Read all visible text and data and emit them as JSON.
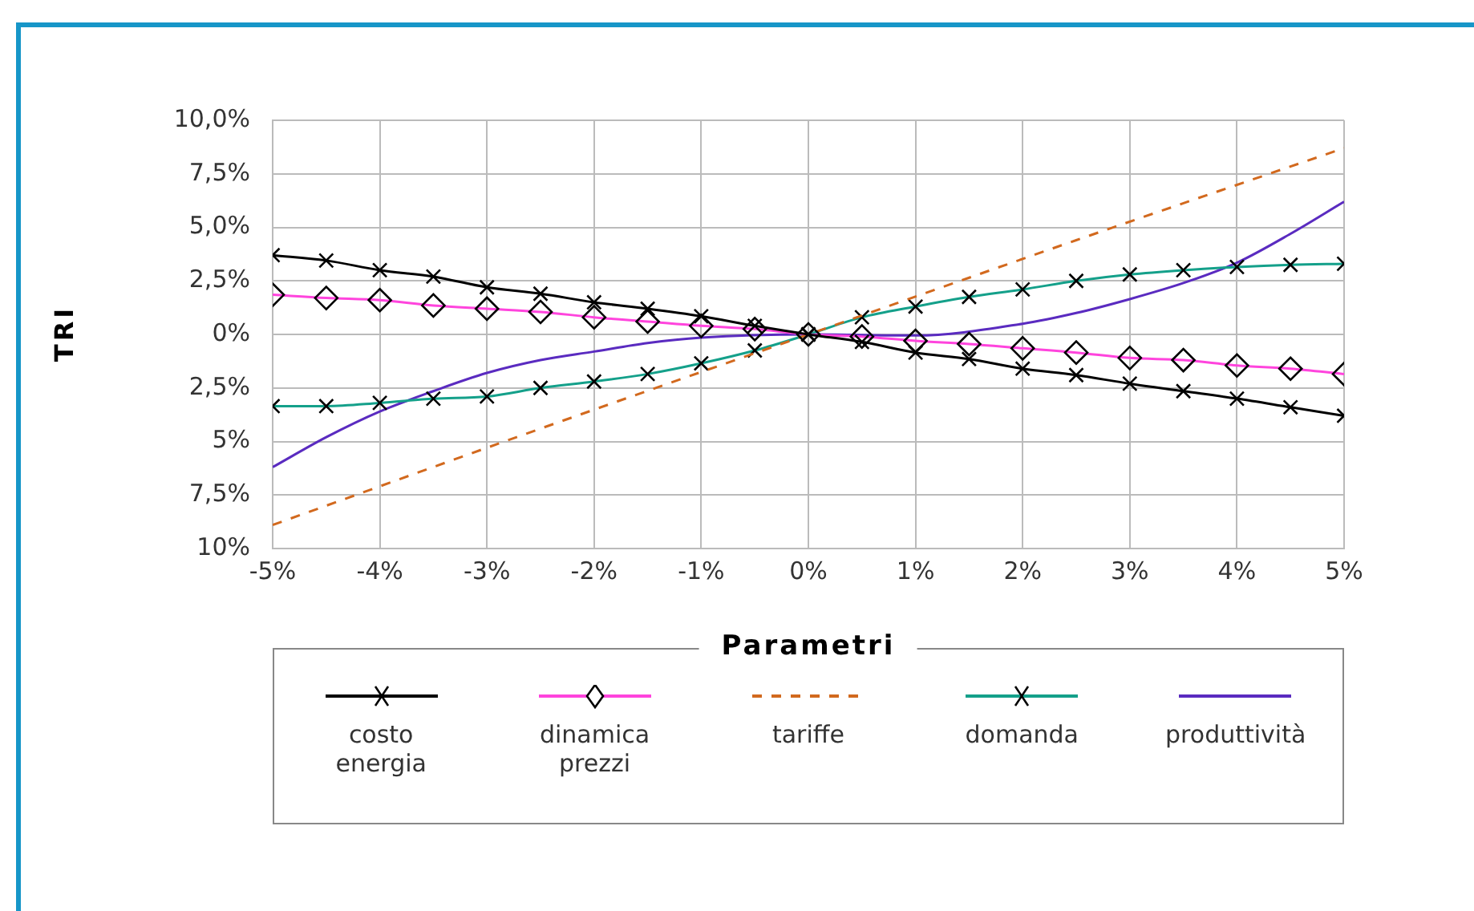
{
  "chart_data": {
    "type": "line",
    "ylabel": "TRI",
    "legend_title": "Parametri",
    "legend": "bottom",
    "grid": true,
    "x": [
      -5,
      -4.5,
      -4,
      -3.5,
      -3,
      -2.5,
      -2,
      -1.5,
      -1,
      -0.5,
      0,
      0.5,
      1,
      1.5,
      2,
      2.5,
      3,
      3.5,
      4,
      4.5,
      5
    ],
    "xlim": [
      -5,
      5
    ],
    "xticks": [
      {
        "value": -5,
        "label": "-5%"
      },
      {
        "value": -4,
        "label": "-4%"
      },
      {
        "value": -3,
        "label": "-3%"
      },
      {
        "value": -2,
        "label": "-2%"
      },
      {
        "value": -1,
        "label": "-1%"
      },
      {
        "value": 0,
        "label": "0%"
      },
      {
        "value": 1,
        "label": "1%"
      },
      {
        "value": 2,
        "label": "2%"
      },
      {
        "value": 3,
        "label": "3%"
      },
      {
        "value": 4,
        "label": "4%"
      },
      {
        "value": 5,
        "label": "5%"
      }
    ],
    "ylim": [
      -10,
      10
    ],
    "yticks": [
      {
        "value": -10,
        "label": "10%"
      },
      {
        "value": -7.5,
        "label": "7,5%"
      },
      {
        "value": -5,
        "label": "5%"
      },
      {
        "value": -2.5,
        "label": "2,5%"
      },
      {
        "value": 0,
        "label": "0%"
      },
      {
        "value": 2.5,
        "label": "2,5%"
      },
      {
        "value": 5,
        "label": "5,0%"
      },
      {
        "value": 7.5,
        "label": "7,5%"
      },
      {
        "value": 10,
        "label": "10,0%"
      }
    ],
    "series": [
      {
        "name": "costo energia",
        "color": "#000000",
        "marker": "cross",
        "line_style": "solid",
        "values": [
          3.7,
          3.45,
          3.0,
          2.7,
          2.2,
          1.9,
          1.5,
          1.2,
          0.85,
          0.4,
          0,
          -0.35,
          -0.85,
          -1.15,
          -1.6,
          -1.9,
          -2.3,
          -2.65,
          -3.0,
          -3.4,
          -3.8
        ]
      },
      {
        "name": "dinamica prezzi",
        "color": "#ff44dd",
        "marker": "diamond",
        "line_style": "solid",
        "values": [
          1.85,
          1.7,
          1.6,
          1.35,
          1.2,
          1.05,
          0.8,
          0.6,
          0.4,
          0.25,
          0,
          -0.1,
          -0.3,
          -0.45,
          -0.65,
          -0.85,
          -1.1,
          -1.2,
          -1.45,
          -1.6,
          -1.85
        ]
      },
      {
        "name": "tariffe",
        "color": "#d2691e",
        "marker": "none",
        "line_style": "dashed",
        "x": [
          -5,
          -2.5,
          0,
          2.5,
          5
        ],
        "values": [
          -8.9,
          -4.4,
          0,
          4.4,
          8.7
        ]
      },
      {
        "name": "domanda",
        "color": "#14a08a",
        "marker": "cross",
        "line_style": "solid",
        "values": [
          -3.35,
          -3.35,
          -3.2,
          -3.0,
          -2.9,
          -2.5,
          -2.2,
          -1.85,
          -1.35,
          -0.75,
          0,
          0.8,
          1.3,
          1.75,
          2.1,
          2.5,
          2.8,
          3.0,
          3.15,
          3.25,
          3.3
        ]
      },
      {
        "name": "produttività",
        "color": "#5a2bc0",
        "marker": "none",
        "line_style": "solid",
        "x": [
          -5,
          -4.5,
          -4,
          -3.5,
          -3,
          -2.5,
          -2,
          -1.5,
          -1,
          0,
          1,
          2,
          2.5,
          3,
          3.5,
          4,
          4.5,
          5
        ],
        "values": [
          -6.2,
          -4.8,
          -3.6,
          -2.65,
          -1.8,
          -1.2,
          -0.8,
          -0.4,
          -0.15,
          0,
          -0.05,
          0.5,
          1.0,
          1.65,
          2.4,
          3.35,
          4.7,
          6.2
        ]
      }
    ]
  }
}
